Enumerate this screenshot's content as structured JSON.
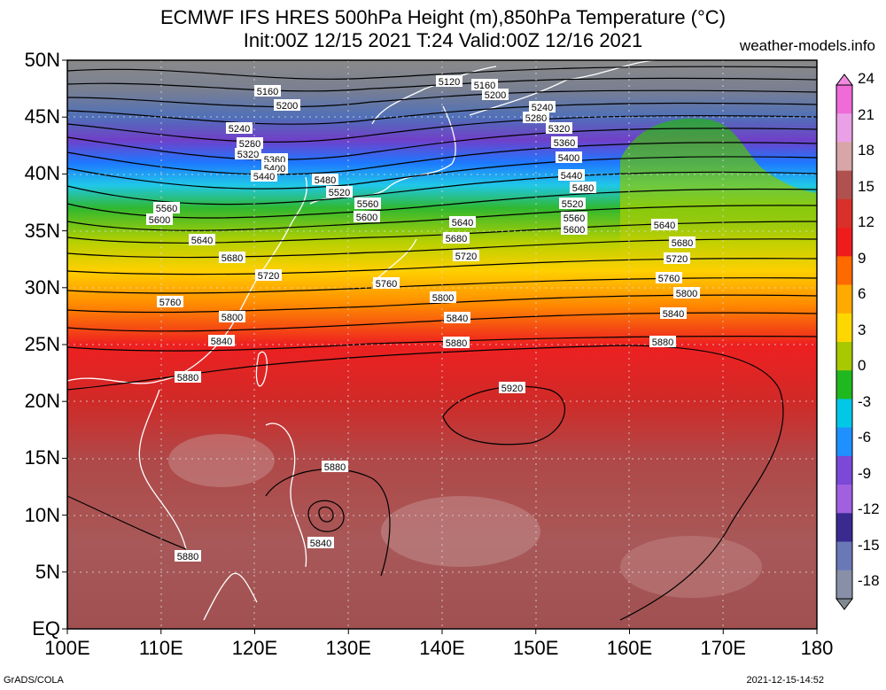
{
  "header": {
    "title_line1": "ECMWF IFS HRES 500hPa Height (m),850hPa Temperature (°C)",
    "title_line2": "Init:00Z 12/15 2021 T:24 Valid:00Z 12/16 2021",
    "site": "weather-models.info"
  },
  "axes": {
    "lat_labels": [
      "50N",
      "45N",
      "40N",
      "35N",
      "30N",
      "25N",
      "20N",
      "15N",
      "10N",
      "5N",
      "EQ"
    ],
    "lon_labels": [
      "100E",
      "110E",
      "120E",
      "130E",
      "140E",
      "150E",
      "160E",
      "170E",
      "180"
    ]
  },
  "colorbar": {
    "ticks": [
      "24",
      "21",
      "18",
      "15",
      "12",
      "9",
      "6",
      "3",
      "0",
      "-3",
      "-6",
      "-9",
      "-12",
      "-15",
      "-18"
    ],
    "colors": [
      "#ef6bd8",
      "#eaa0e6",
      "#d8a6a6",
      "#b0504f",
      "#d9302a",
      "#ee1c1c",
      "#ff6a00",
      "#ffaa00",
      "#ffd700",
      "#a8c800",
      "#1fb81f",
      "#00c8e6",
      "#1e90ff",
      "#7b48d8",
      "#a060e0",
      "#3a2a90",
      "#6a78b8",
      "#8890a8"
    ]
  },
  "contours": {
    "labels": [
      "5120",
      "5160",
      "5160",
      "5200",
      "5200",
      "5240",
      "5240",
      "5280",
      "5280",
      "5320",
      "5320",
      "5360",
      "5360",
      "5400",
      "5400",
      "5440",
      "5440",
      "5480",
      "5480",
      "5520",
      "5520",
      "5560",
      "5560",
      "5560",
      "5600",
      "5600",
      "5600",
      "5640",
      "5640",
      "5640",
      "5680",
      "5680",
      "5680",
      "5720",
      "5720",
      "5720",
      "5760",
      "5760",
      "5760",
      "5800",
      "5800",
      "5800",
      "5840",
      "5840",
      "5840",
      "5840",
      "5880",
      "5880",
      "5880",
      "5880",
      "5880",
      "5920"
    ]
  },
  "footer": {
    "left": "GrADS/COLA",
    "right": "2021-12-15-14:52"
  }
}
